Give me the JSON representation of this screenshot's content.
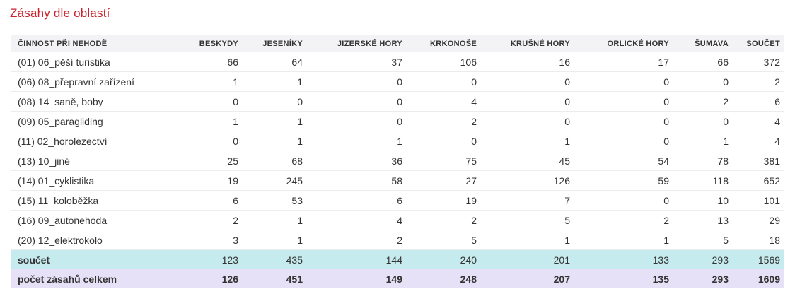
{
  "title": "Zásahy dle oblastí",
  "table": {
    "headers": [
      "ČINNOST PŘI NEHODĚ",
      "BESKYDY",
      "JESENÍKY",
      "JIZERSKÉ HORY",
      "KRKONOŠE",
      "KRUŠNÉ HORY",
      "ORLICKÉ HORY",
      "ŠUMAVA",
      "SOUČET"
    ],
    "rows": [
      [
        "(01) 06_pěší turistika",
        "66",
        "64",
        "37",
        "106",
        "16",
        "17",
        "66",
        "372"
      ],
      [
        "(06) 08_přepravní zařízení",
        "1",
        "1",
        "0",
        "0",
        "0",
        "0",
        "0",
        "2"
      ],
      [
        "(08) 14_saně, boby",
        "0",
        "0",
        "0",
        "4",
        "0",
        "0",
        "2",
        "6"
      ],
      [
        "(09) 05_paragliding",
        "1",
        "1",
        "0",
        "2",
        "0",
        "0",
        "0",
        "4"
      ],
      [
        "(11) 02_horolezectví",
        "0",
        "1",
        "1",
        "0",
        "1",
        "0",
        "1",
        "4"
      ],
      [
        "(13) 10_jiné",
        "25",
        "68",
        "36",
        "75",
        "45",
        "54",
        "78",
        "381"
      ],
      [
        "(14) 01_cyklistika",
        "19",
        "245",
        "58",
        "27",
        "126",
        "59",
        "118",
        "652"
      ],
      [
        "(15) 11_koloběžka",
        "6",
        "53",
        "6",
        "19",
        "7",
        "0",
        "10",
        "101"
      ],
      [
        "(16) 09_autonehoda",
        "2",
        "1",
        "4",
        "2",
        "5",
        "2",
        "13",
        "29"
      ],
      [
        "(20) 12_elektrokolo",
        "3",
        "1",
        "2",
        "5",
        "1",
        "1",
        "5",
        "18"
      ]
    ],
    "sum_row": [
      "součet",
      "123",
      "435",
      "144",
      "240",
      "201",
      "133",
      "293",
      "1569"
    ],
    "total_row": [
      "počet zásahů celkem",
      "126",
      "451",
      "149",
      "248",
      "207",
      "135",
      "293",
      "1609"
    ]
  }
}
